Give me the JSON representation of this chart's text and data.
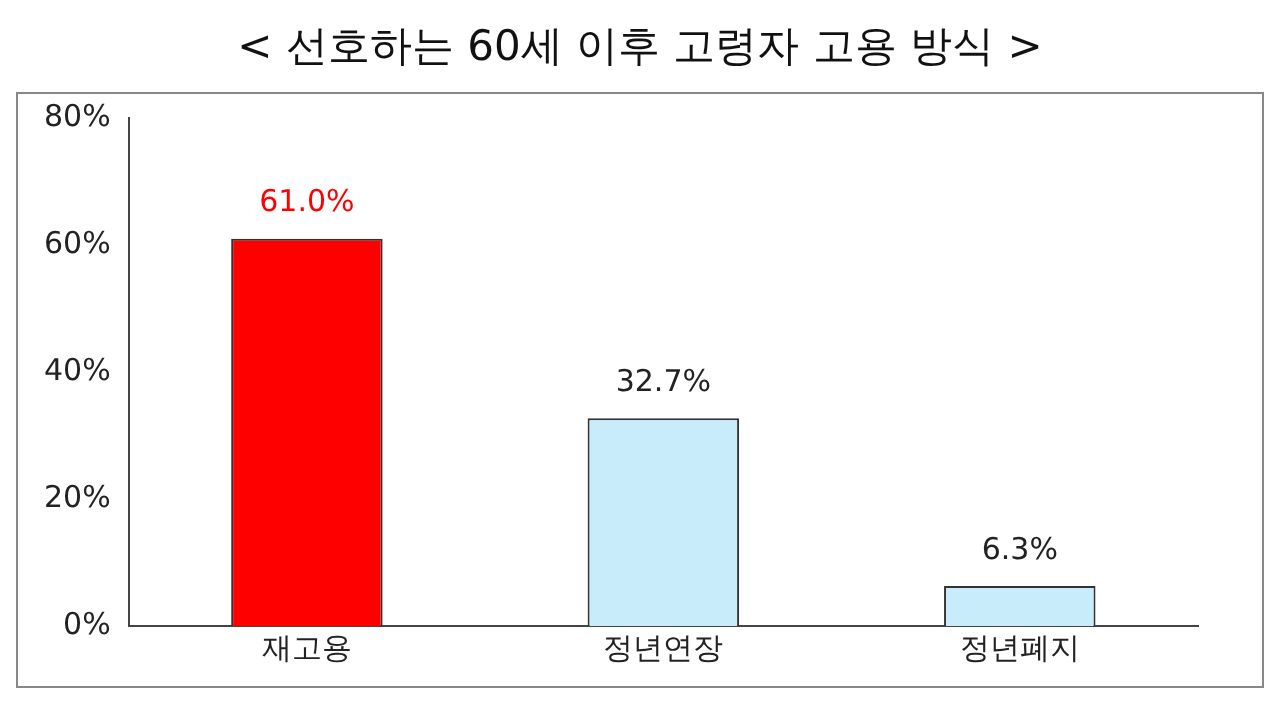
{
  "chart_data": {
    "type": "bar",
    "title": "< 선호하는 60세 이후 고령자 고용 방식 >",
    "categories": [
      "재고용",
      "정년연장",
      "정년폐지"
    ],
    "values": [
      61.0,
      32.7,
      6.3
    ],
    "colors": [
      "#ff0000",
      "#c9ecfa",
      "#c9ecfa"
    ],
    "value_labels": [
      "61.0%",
      "32.7%",
      "6.3%"
    ],
    "ylim": [
      0,
      80
    ],
    "yticks": [
      {
        "value": 0,
        "label": "0%"
      },
      {
        "value": 20,
        "label": "20%"
      },
      {
        "value": 40,
        "label": "40%"
      },
      {
        "value": 60,
        "label": "60%"
      },
      {
        "value": 80,
        "label": "80%"
      }
    ],
    "grid": false,
    "legend": false
  }
}
